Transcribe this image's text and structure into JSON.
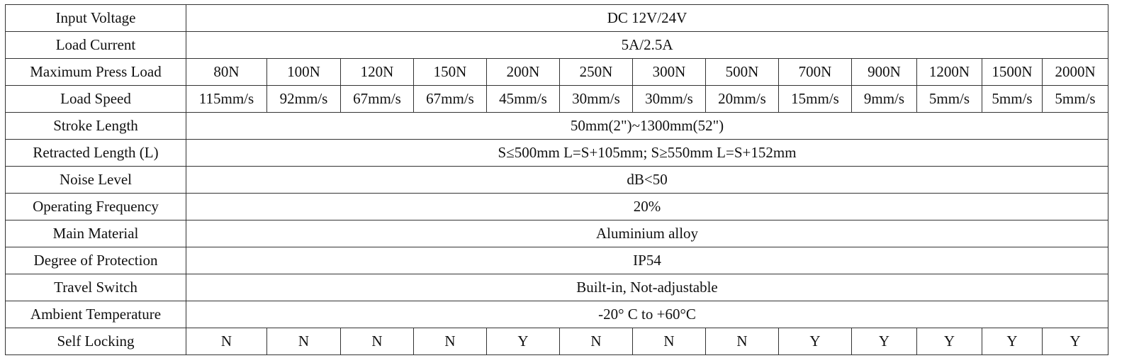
{
  "table": {
    "rows": [
      {
        "label": "Input Voltage",
        "value": "DC 12V/24V"
      },
      {
        "label": "Load Current",
        "value": "5A/2.5A"
      },
      {
        "label": "Maximum Press Load",
        "values": [
          "80N",
          "100N",
          "120N",
          "150N",
          "200N",
          "250N",
          "300N",
          "500N",
          "700N",
          "900N",
          "1200N",
          "1500N",
          "2000N"
        ]
      },
      {
        "label": "Load Speed",
        "values": [
          "115mm/s",
          "92mm/s",
          "67mm/s",
          "67mm/s",
          "45mm/s",
          "30mm/s",
          "30mm/s",
          "20mm/s",
          "15mm/s",
          "9mm/s",
          "5mm/s",
          "5mm/s",
          "5mm/s"
        ]
      },
      {
        "label": "Stroke Length",
        "value": "50mm(2\")~1300mm(52\")"
      },
      {
        "label": "Retracted Length (L)",
        "value": "S≤500mm L=S+105mm; S≥550mm L=S+152mm"
      },
      {
        "label": "Noise Level",
        "value": "dB<50"
      },
      {
        "label": "Operating Frequency",
        "value": "20%"
      },
      {
        "label": "Main Material",
        "value": "Aluminium alloy"
      },
      {
        "label": "Degree of Protection",
        "value": "IP54"
      },
      {
        "label": "Travel Switch",
        "value": "Built-in, Not-adjustable"
      },
      {
        "label": "Ambient Temperature",
        "value": "-20° C to +60°C"
      },
      {
        "label": "Self Locking",
        "values": [
          "N",
          "N",
          "N",
          "N",
          "Y",
          "N",
          "N",
          "N",
          "Y",
          "Y",
          "Y",
          "Y",
          "Y"
        ]
      }
    ]
  }
}
